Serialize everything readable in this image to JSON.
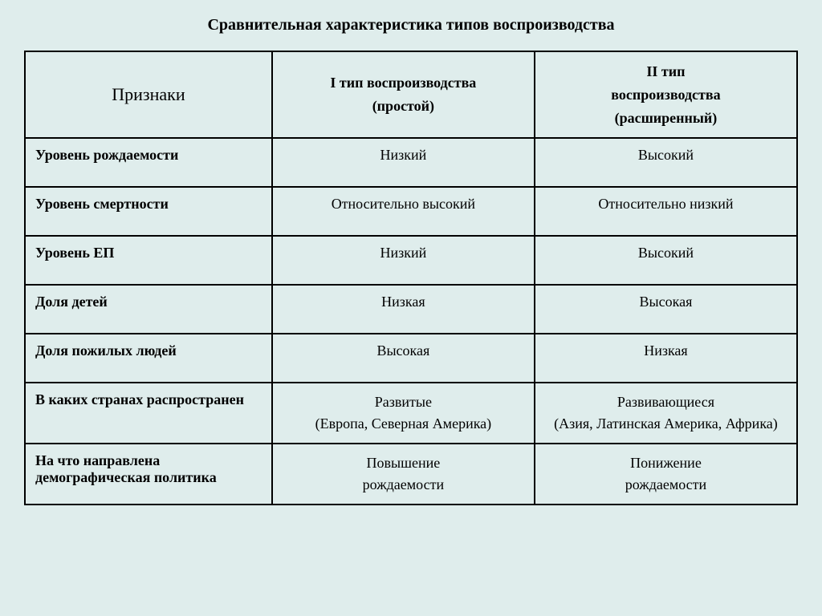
{
  "title": "Сравнительная характеристика типов воспроизводства",
  "table": {
    "columns": [
      "Признаки",
      "I тип воспроизводства (простой)",
      "II тип воспроизводства (расширенный)"
    ],
    "headers": {
      "col1": "Признаки",
      "col2_line1": "I тип воспроизводства",
      "col2_line2": "(простой)",
      "col3_line1": "II тип",
      "col3_line2": "воспроизводства",
      "col3_line3": "(расширенный)"
    },
    "rows": [
      {
        "label": "Уровень рождаемости",
        "type1": "Низкий",
        "type2": "Высокий",
        "tall": true
      },
      {
        "label": "Уровень смертности",
        "type1": "Относительно высокий",
        "type2": "Относительно низкий",
        "tall": true
      },
      {
        "label": "Уровень ЕП",
        "type1": "Низкий",
        "type2": "Высокий",
        "tall": true
      },
      {
        "label": "Доля детей",
        "type1": "Низкая",
        "type2": "Высокая",
        "tall": true
      },
      {
        "label": "Доля пожилых людей",
        "type1": "Высокая",
        "type2": "Низкая",
        "tall": true
      },
      {
        "label": "В каких странах распространен",
        "type1_line1": "Развитые",
        "type1_line2": "(Европа, Северная Америка)",
        "type2_line1": "Развивающиеся",
        "type2_line2": "(Азия, Латинская Америка, Африка)",
        "multiline": true
      },
      {
        "label": "На что направлена демографическая политика",
        "type1_line1": "Повышение",
        "type1_line2": "рождаемости",
        "type2_line1": "Понижение",
        "type2_line2": "рождаемости",
        "multiline": true
      }
    ]
  },
  "colors": {
    "background": "#dfedec",
    "border": "#000000",
    "text": "#000000"
  },
  "typography": {
    "title_fontsize": 20,
    "header_col1_fontsize": 22,
    "header_other_fontsize": 18,
    "cell_fontsize": 18,
    "font_family": "Times New Roman"
  }
}
